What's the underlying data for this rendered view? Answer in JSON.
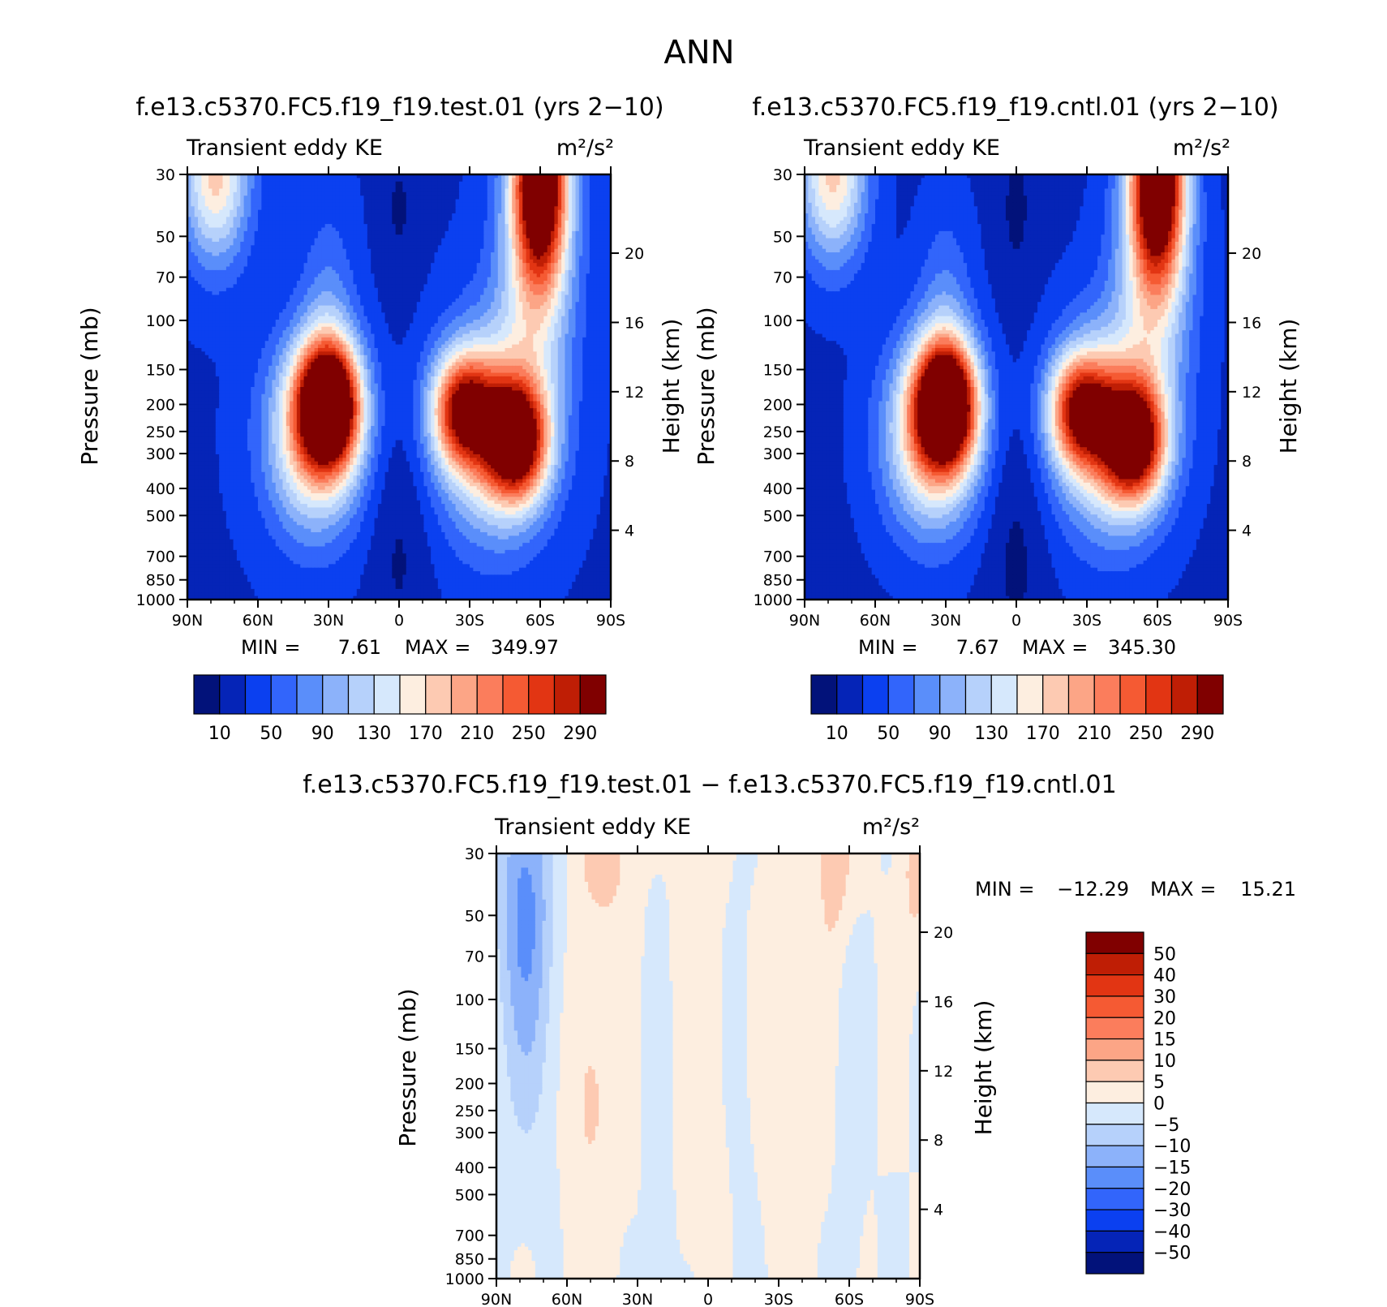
{
  "page_title": "ANN",
  "colors": {
    "pos": [
      "#fdeee0",
      "#fdcab2",
      "#fca586",
      "#fb7d5c",
      "#f55a33",
      "#e23513",
      "#bf1e05",
      "#800000"
    ],
    "neg": [
      "#d6e8fc",
      "#b6d1fb",
      "#8cb2fa",
      "#5a8efa",
      "#3265fb",
      "#0b40f0",
      "#0524b7",
      "#02127a"
    ],
    "diff_pos": [
      "#fdeee0",
      "#fdcab2",
      "#fca586",
      "#fb7d5c",
      "#f55a33",
      "#e23513",
      "#bf1e05",
      "#800000"
    ],
    "diff_neg": [
      "#d6e8fc",
      "#b6d1fb",
      "#8cb2fa",
      "#5a8efa",
      "#3265fb",
      "#0b40f0",
      "#0524b7",
      "#02127a"
    ]
  },
  "chart_data": [
    {
      "type": "heatmap",
      "id": "test",
      "title": "f.e13.c5370.FC5.f19_f19.test.01 (yrs 2−10)",
      "left_label": "Transient eddy KE",
      "right_label": "m²/s²",
      "ylabel": "Pressure (mb)",
      "y2label": "Height (km)",
      "x_ticks": [
        "90N",
        "60N",
        "30N",
        "0",
        "30S",
        "60S",
        "90S"
      ],
      "y_ticks": [
        "30",
        "50",
        "70",
        "100",
        "150",
        "200",
        "250",
        "300",
        "400",
        "500",
        "700",
        "850",
        "1000"
      ],
      "y2_ticks": [
        "20",
        "16",
        "12",
        "8",
        "4"
      ],
      "min_label": "MIN =",
      "min_value": "7.61",
      "max_label": "MAX =",
      "max_value": "349.97",
      "colorbar_labels": [
        "10",
        "50",
        "90",
        "130",
        "170",
        "210",
        "250",
        "290"
      ],
      "jets": [
        {
          "lat": 30,
          "pressure": 200,
          "peak": 349.97
        },
        {
          "lat": -27,
          "pressure": 200,
          "peak": 260
        },
        {
          "lat": -50,
          "pressure": 260,
          "peak": 290
        },
        {
          "lat": -60,
          "pressure": 30,
          "peak": 340
        }
      ]
    },
    {
      "type": "heatmap",
      "id": "cntl",
      "title": "f.e13.c5370.FC5.f19_f19.cntl.01 (yrs 2−10)",
      "left_label": "Transient eddy KE",
      "right_label": "m²/s²",
      "ylabel": "Pressure (mb)",
      "y2label": "Height (km)",
      "x_ticks": [
        "90N",
        "60N",
        "30N",
        "0",
        "30S",
        "60S",
        "90S"
      ],
      "y_ticks": [
        "30",
        "50",
        "70",
        "100",
        "150",
        "200",
        "250",
        "300",
        "400",
        "500",
        "700",
        "850",
        "1000"
      ],
      "y2_ticks": [
        "20",
        "16",
        "12",
        "8",
        "4"
      ],
      "min_label": "MIN =",
      "min_value": "7.67",
      "max_label": "MAX =",
      "max_value": "345.30",
      "colorbar_labels": [
        "10",
        "50",
        "90",
        "130",
        "170",
        "210",
        "250",
        "290"
      ],
      "jets": [
        {
          "lat": 30,
          "pressure": 200,
          "peak": 345.3
        },
        {
          "lat": -27,
          "pressure": 200,
          "peak": 255
        },
        {
          "lat": -50,
          "pressure": 260,
          "peak": 285
        },
        {
          "lat": -60,
          "pressure": 30,
          "peak": 335
        }
      ]
    },
    {
      "type": "heatmap",
      "id": "diff",
      "title": "f.e13.c5370.FC5.f19_f19.test.01 − f.e13.c5370.FC5.f19_f19.cntl.01",
      "left_label": "Transient eddy KE",
      "right_label": "m²/s²",
      "ylabel": "Pressure (mb)",
      "y2label": "Height (km)",
      "x_ticks": [
        "90N",
        "60N",
        "30N",
        "0",
        "30S",
        "60S",
        "90S"
      ],
      "y_ticks": [
        "30",
        "50",
        "70",
        "100",
        "150",
        "200",
        "250",
        "300",
        "400",
        "500",
        "700",
        "850",
        "1000"
      ],
      "y2_ticks": [
        "20",
        "16",
        "12",
        "8",
        "4"
      ],
      "min_label": "MIN =",
      "min_value": "−12.29",
      "max_label": "MAX =",
      "max_value": "15.21",
      "colorbar_labels": [
        "50",
        "40",
        "30",
        "20",
        "15",
        "10",
        "5",
        "0",
        "−5",
        "−10",
        "−15",
        "−20",
        "−30",
        "−40",
        "−50"
      ]
    }
  ]
}
